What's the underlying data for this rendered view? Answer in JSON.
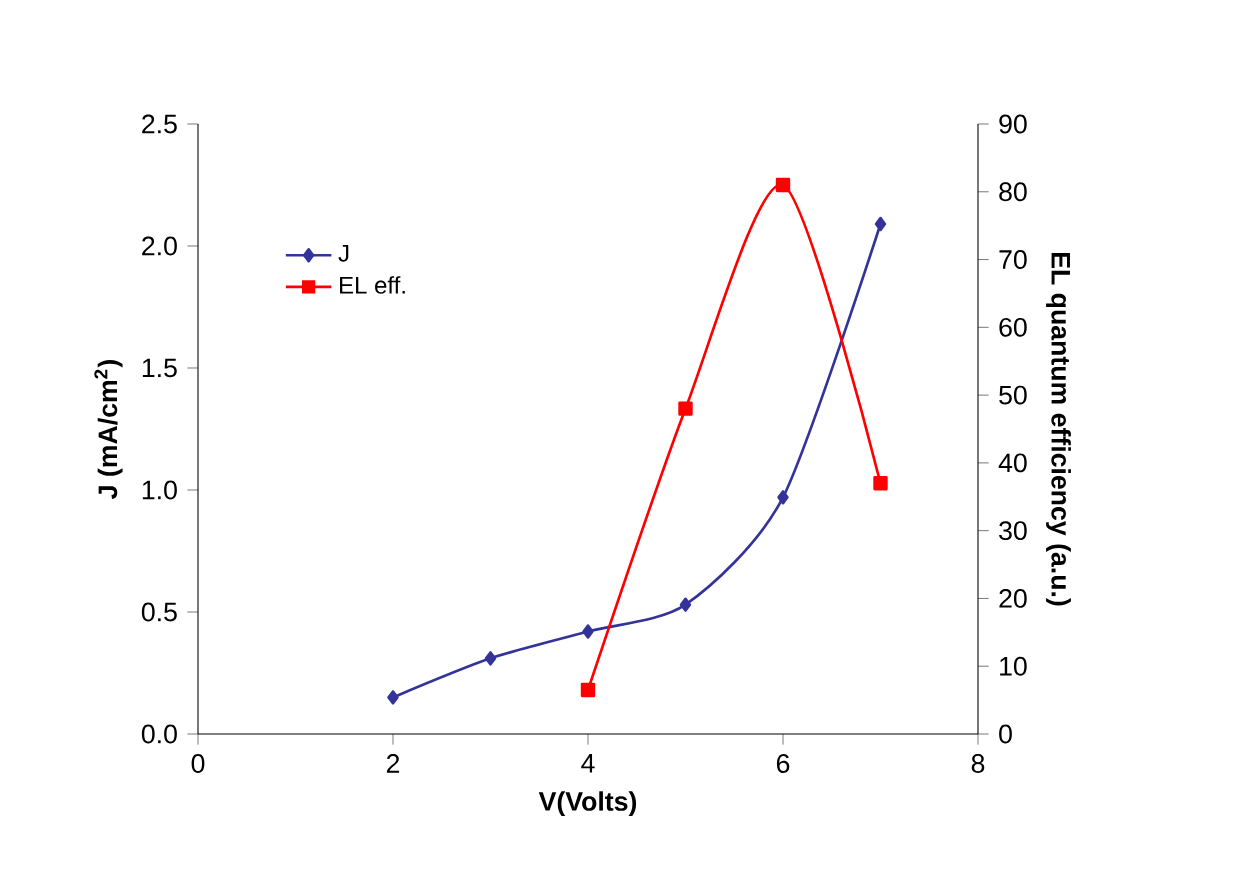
{
  "chart_data": {
    "type": "line",
    "xlabel": "V(Volts)",
    "ylabel": "J (mA/cm$^{2}$)",
    "y2label": "EL quantum efficiency (a.u.)",
    "xlim": [
      0,
      8
    ],
    "xticks": [
      0,
      2,
      4,
      6,
      8
    ],
    "ylim": [
      0,
      2.5
    ],
    "yticks": [
      {
        "value": 0,
        "label": "0.0"
      },
      {
        "value": 0.5,
        "label": "0.5"
      },
      {
        "value": 1,
        "label": "1.0"
      },
      {
        "value": 1.5,
        "label": "1.5"
      },
      {
        "value": 2,
        "label": "2.0"
      },
      {
        "value": 2.5,
        "label": "2.5"
      }
    ],
    "y2lim": [
      0,
      90
    ],
    "y2ticks": [
      0,
      10,
      20,
      30,
      40,
      50,
      60,
      70,
      80,
      90
    ],
    "legend": "top left",
    "grid": false,
    "series": [
      {
        "name": "J",
        "color": "#333399",
        "marker": "diamond",
        "x": [
          2,
          3,
          4,
          5,
          6,
          7
        ],
        "values": [
          0.15,
          0.31,
          0.42,
          0.53,
          0.97,
          2.09
        ]
      },
      {
        "name": "EL eff.",
        "color": "#ff0000",
        "marker": "square",
        "axis": "y2",
        "x": [
          4,
          5,
          6,
          7
        ],
        "values": [
          6.5,
          48,
          81,
          37
        ]
      }
    ]
  }
}
